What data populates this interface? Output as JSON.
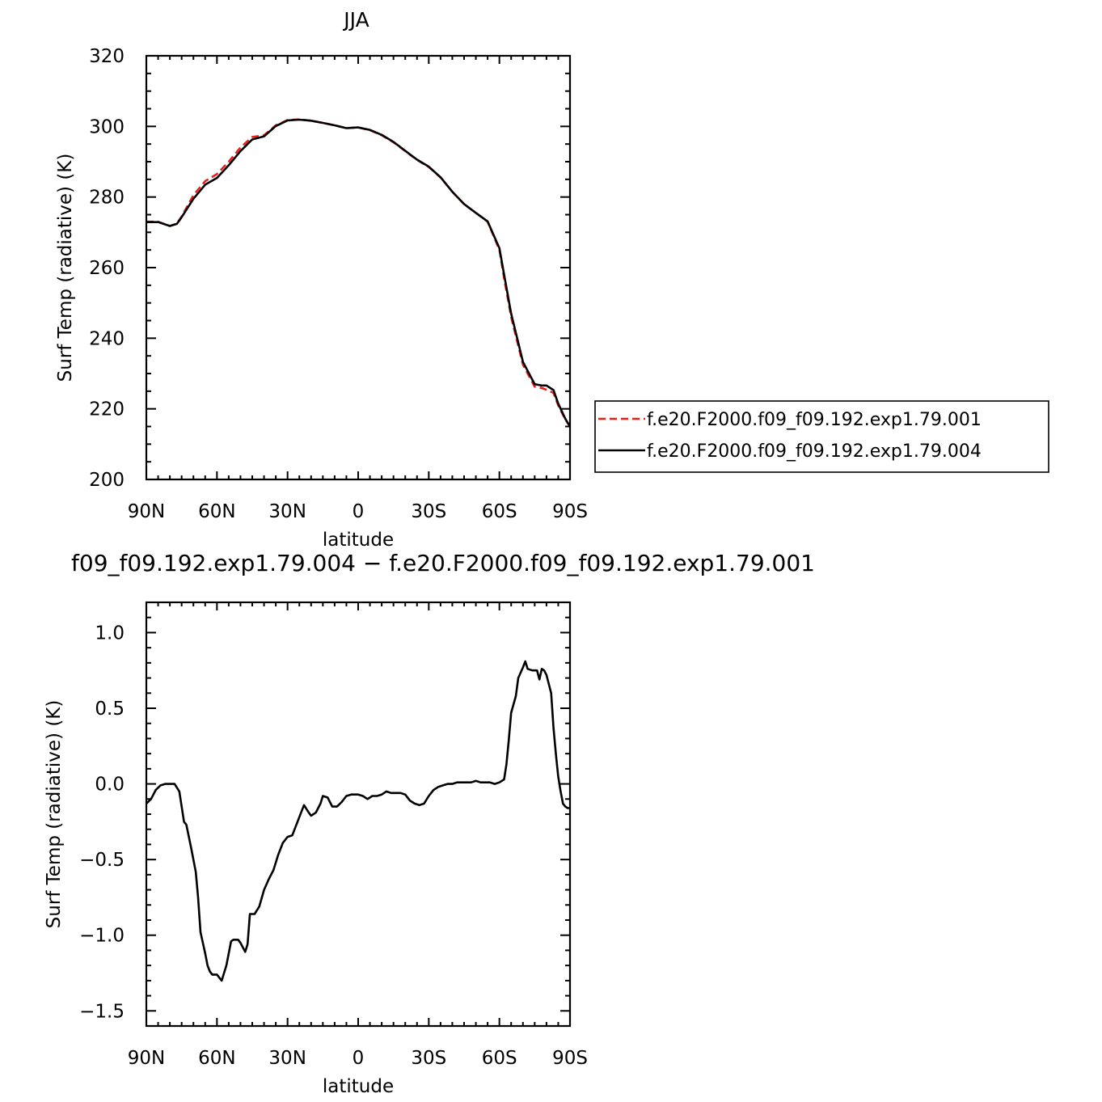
{
  "chart_data": [
    {
      "type": "line",
      "title": "JJA",
      "xlabel": "latitude",
      "ylabel": "Surf Temp (radiative) (K)",
      "xlim": [
        90,
        -90
      ],
      "ylim": [
        200,
        320
      ],
      "xticks": [
        90,
        60,
        30,
        0,
        -30,
        -60,
        -90
      ],
      "xtick_labels": [
        "90N",
        "60N",
        "30N",
        "0",
        "30S",
        "60S",
        "90S"
      ],
      "yticks": [
        200,
        220,
        240,
        260,
        280,
        300,
        320
      ],
      "ytick_labels": [
        "200",
        "220",
        "240",
        "260",
        "280",
        "300",
        "320"
      ],
      "legend_position": "right",
      "series": [
        {
          "name": "f.e20.F2000.f09_f09.192.exp1.79.001",
          "color": "#e8201c",
          "dash": "dashed",
          "x": [
            90,
            85,
            80,
            77,
            75,
            70,
            65,
            60,
            55,
            50,
            45,
            40,
            35,
            30,
            25,
            20,
            15,
            10,
            5,
            0,
            -5,
            -10,
            -15,
            -20,
            -25,
            -30,
            -35,
            -40,
            -45,
            -50,
            -55,
            -60,
            -62,
            -65,
            -70,
            -75,
            -78,
            -80,
            -83,
            -85,
            -88,
            -90
          ],
          "y": [
            273,
            273,
            271.8,
            272.5,
            274.5,
            280.5,
            284.5,
            286.5,
            290,
            294,
            297,
            297.5,
            300.3,
            301.8,
            302,
            301.6,
            301,
            300.3,
            299.5,
            299.7,
            298.9,
            297.5,
            295.5,
            293,
            290.5,
            288.5,
            285.5,
            281.5,
            278,
            275.5,
            273,
            265,
            257,
            246,
            232.5,
            226.3,
            225.9,
            225.4,
            224.5,
            221,
            217,
            215
          ]
        },
        {
          "name": "f.e20.F2000.f09_f09.192.exp1.79.004",
          "color": "#000000",
          "dash": "solid",
          "x": [
            90,
            85,
            80,
            77,
            75,
            70,
            65,
            60,
            55,
            50,
            45,
            40,
            35,
            30,
            25,
            20,
            15,
            10,
            5,
            0,
            -5,
            -10,
            -15,
            -20,
            -25,
            -30,
            -35,
            -40,
            -45,
            -50,
            -55,
            -60,
            -62,
            -65,
            -70,
            -75,
            -78,
            -80,
            -83,
            -85,
            -88,
            -90
          ],
          "y": [
            272.9,
            272.9,
            271.8,
            272.4,
            274.3,
            279.5,
            283.5,
            285.4,
            289,
            293,
            296.3,
            297.2,
            300.1,
            301.7,
            301.9,
            301.6,
            301,
            300.3,
            299.5,
            299.7,
            299,
            297.6,
            295.6,
            293.1,
            290.6,
            288.6,
            285.6,
            281.5,
            278,
            275.5,
            273.1,
            265.5,
            258,
            247,
            233.3,
            227,
            226.6,
            226.6,
            225.3,
            221.5,
            217.2,
            215
          ]
        }
      ]
    },
    {
      "type": "line",
      "title": "f09_f09.192.exp1.79.004 − f.e20.F2000.f09_f09.192.exp1.79.001",
      "xlabel": "latitude",
      "ylabel": "Surf Temp (radiative) (K)",
      "xlim": [
        90,
        -90
      ],
      "ylim": [
        -1.6,
        1.2
      ],
      "xticks": [
        90,
        60,
        30,
        0,
        -30,
        -60,
        -90
      ],
      "xtick_labels": [
        "90N",
        "60N",
        "30N",
        "0",
        "30S",
        "60S",
        "90S"
      ],
      "yticks": [
        -1.5,
        -1.0,
        -0.5,
        0.0,
        0.5,
        1.0
      ],
      "ytick_labels": [
        "−1.5",
        "−1.0",
        "−0.5",
        "0.0",
        "0.5",
        "1.0"
      ],
      "series": [
        {
          "color": "#000000",
          "dash": "solid",
          "x": [
            90,
            88,
            86,
            84,
            82,
            80,
            78,
            76,
            74,
            73,
            71,
            69,
            68,
            67,
            65,
            64,
            63,
            62,
            60,
            58,
            57,
            56,
            54,
            53,
            51,
            50,
            48,
            47,
            46,
            44,
            42,
            40,
            38,
            36,
            34,
            32,
            30,
            28,
            27,
            25,
            23,
            21,
            20,
            18,
            16,
            15,
            13,
            11,
            9,
            7,
            5,
            3,
            1,
            0,
            -2,
            -4,
            -6,
            -8,
            -10,
            -12,
            -14,
            -16,
            -18,
            -20,
            -22,
            -24,
            -26,
            -28,
            -30,
            -32,
            -34,
            -36,
            -38,
            -40,
            -42,
            -44,
            -46,
            -48,
            -50,
            -52,
            -54,
            -56,
            -58,
            -60,
            -62,
            -63,
            -64,
            -65,
            -67,
            -68,
            -70,
            -71,
            -72,
            -74,
            -76,
            -77,
            -78,
            -79,
            -80,
            -82,
            -83,
            -84,
            -85,
            -86,
            -87,
            -88,
            -89,
            -90
          ],
          "y": [
            -0.13,
            -0.1,
            -0.04,
            -0.01,
            0.0,
            0.0,
            0.0,
            -0.05,
            -0.25,
            -0.27,
            -0.42,
            -0.58,
            -0.75,
            -0.98,
            -1.12,
            -1.2,
            -1.24,
            -1.26,
            -1.26,
            -1.3,
            -1.25,
            -1.2,
            -1.04,
            -1.03,
            -1.03,
            -1.05,
            -1.11,
            -1.06,
            -0.86,
            -0.86,
            -0.81,
            -0.7,
            -0.63,
            -0.57,
            -0.47,
            -0.39,
            -0.35,
            -0.34,
            -0.3,
            -0.22,
            -0.14,
            -0.19,
            -0.21,
            -0.19,
            -0.13,
            -0.08,
            -0.09,
            -0.15,
            -0.15,
            -0.12,
            -0.08,
            -0.07,
            -0.07,
            -0.07,
            -0.08,
            -0.1,
            -0.08,
            -0.08,
            -0.07,
            -0.05,
            -0.06,
            -0.06,
            -0.06,
            -0.07,
            -0.11,
            -0.13,
            -0.14,
            -0.13,
            -0.08,
            -0.04,
            -0.02,
            -0.01,
            0.0,
            0.0,
            0.01,
            0.01,
            0.01,
            0.01,
            0.02,
            0.01,
            0.01,
            0.01,
            0.0,
            0.01,
            0.03,
            0.13,
            0.29,
            0.47,
            0.58,
            0.7,
            0.77,
            0.81,
            0.76,
            0.75,
            0.75,
            0.69,
            0.76,
            0.75,
            0.72,
            0.6,
            0.37,
            0.2,
            0.05,
            -0.05,
            -0.13,
            -0.15,
            -0.16,
            -0.16
          ]
        }
      ]
    }
  ]
}
